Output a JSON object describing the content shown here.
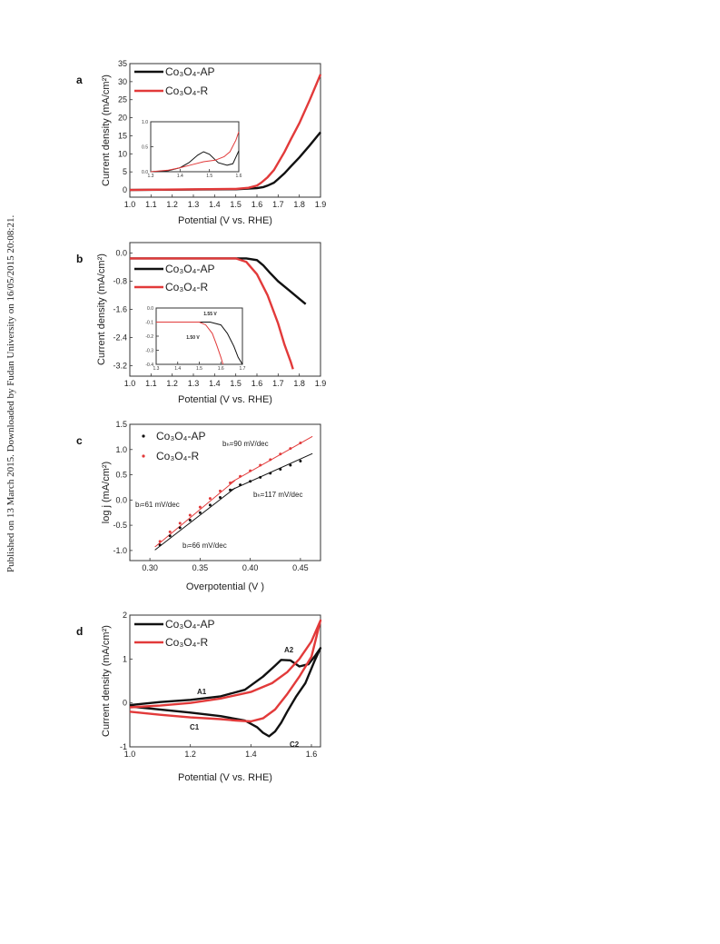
{
  "side_note": "Published on 13 March 2015. Downloaded by Fudan University on 16/05/2015 20:08:21.",
  "colors": {
    "ap": "#111111",
    "r": "#e23a3a"
  },
  "chart_data": [
    {
      "panel": "a",
      "type": "line",
      "xlabel": "Potential (V vs. RHE)",
      "ylabel": "Current density (mA/cm²)",
      "xlim": [
        1.0,
        1.9
      ],
      "ylim": [
        -2,
        35
      ],
      "xticks": [
        "1.0",
        "1.1",
        "1.2",
        "1.3",
        "1.4",
        "1.5",
        "1.6",
        "1.7",
        "1.8",
        "1.9"
      ],
      "yticks": [
        "0",
        "5",
        "10",
        "15",
        "20",
        "25",
        "30",
        "35"
      ],
      "legend": [
        "Co₃O₄-AP",
        "Co₃O₄-R"
      ],
      "series": [
        {
          "name": "Co₃O₄-AP",
          "x": [
            1.0,
            1.5,
            1.6,
            1.63,
            1.65,
            1.68,
            1.7,
            1.73,
            1.76,
            1.8,
            1.85,
            1.9
          ],
          "y": [
            0,
            0.2,
            0.5,
            0.8,
            1.2,
            2,
            3,
            4.6,
            6.5,
            9,
            12.4,
            16
          ]
        },
        {
          "name": "Co₃O₄-R",
          "x": [
            1.0,
            1.5,
            1.56,
            1.6,
            1.62,
            1.65,
            1.68,
            1.7,
            1.73,
            1.76,
            1.8,
            1.85,
            1.9
          ],
          "y": [
            0,
            0.3,
            0.6,
            1.2,
            2,
            3.5,
            5.5,
            7.5,
            10.5,
            14,
            18.5,
            25,
            32
          ]
        }
      ],
      "inset": {
        "xlim": [
          1.3,
          1.6
        ],
        "ylim": [
          0,
          1.0
        ],
        "xticks": [
          "1.3",
          "1.4",
          "1.5",
          "1.6"
        ],
        "yticks": [
          "0.0",
          "0.5",
          "1.0"
        ],
        "series": [
          {
            "name": "Co₃O₄-AP",
            "x": [
              1.3,
              1.36,
              1.4,
              1.43,
              1.46,
              1.48,
              1.5,
              1.53,
              1.56,
              1.58,
              1.6
            ],
            "y": [
              0.0,
              0.02,
              0.08,
              0.18,
              0.33,
              0.4,
              0.35,
              0.18,
              0.13,
              0.16,
              0.42
            ]
          },
          {
            "name": "Co₃O₄-R",
            "x": [
              1.3,
              1.36,
              1.4,
              1.44,
              1.48,
              1.52,
              1.55,
              1.57,
              1.59,
              1.6
            ],
            "y": [
              0.0,
              0.03,
              0.08,
              0.14,
              0.2,
              0.23,
              0.3,
              0.4,
              0.63,
              0.8
            ]
          }
        ]
      }
    },
    {
      "panel": "b",
      "type": "line",
      "xlabel": "Potential (V vs. RHE)",
      "ylabel": "Current density (mA/cm²)",
      "xlim": [
        1.0,
        1.9
      ],
      "ylim": [
        -3.5,
        0.3
      ],
      "xticks": [
        "1.0",
        "1.1",
        "1.2",
        "1.3",
        "1.4",
        "1.5",
        "1.6",
        "1.7",
        "1.8",
        "1.9"
      ],
      "yticks": [
        "0.0",
        "-0.8",
        "-1.6",
        "-2.4",
        "-3.2"
      ],
      "legend": [
        "Co₃O₄-AP",
        "Co₃O₄-R"
      ],
      "series": [
        {
          "name": "Co₃O₄-AP",
          "x": [
            1.0,
            1.5,
            1.55,
            1.6,
            1.63,
            1.66,
            1.7,
            1.75,
            1.8,
            1.83
          ],
          "y": [
            -0.15,
            -0.15,
            -0.15,
            -0.2,
            -0.35,
            -0.55,
            -0.8,
            -1.05,
            -1.3,
            -1.45
          ]
        },
        {
          "name": "Co₃O₄-R",
          "x": [
            1.0,
            1.45,
            1.5,
            1.55,
            1.6,
            1.65,
            1.7,
            1.73,
            1.76,
            1.77
          ],
          "y": [
            -0.15,
            -0.15,
            -0.15,
            -0.25,
            -0.6,
            -1.2,
            -2.0,
            -2.6,
            -3.1,
            -3.3
          ]
        }
      ],
      "inset": {
        "xlim": [
          1.3,
          1.7
        ],
        "ylim": [
          -0.4,
          0.0
        ],
        "xticks": [
          "1.3",
          "1.4",
          "1.5",
          "1.6",
          "1.7"
        ],
        "yticks": [
          "0.0",
          "-0.1",
          "-0.2",
          "-0.3",
          "-0.4"
        ],
        "labels": [
          "1.55 V",
          "1.50 V"
        ],
        "series": [
          {
            "name": "Co₃O₄-AP",
            "x": [
              1.3,
              1.5,
              1.55,
              1.6,
              1.63,
              1.66,
              1.68,
              1.7
            ],
            "y": [
              -0.1,
              -0.1,
              -0.1,
              -0.12,
              -0.18,
              -0.27,
              -0.35,
              -0.4
            ]
          },
          {
            "name": "Co₃O₄-R",
            "x": [
              1.3,
              1.45,
              1.5,
              1.53,
              1.56,
              1.58,
              1.6,
              1.61
            ],
            "y": [
              -0.1,
              -0.1,
              -0.1,
              -0.12,
              -0.18,
              -0.26,
              -0.35,
              -0.4
            ]
          }
        ]
      }
    },
    {
      "panel": "c",
      "type": "scatter",
      "xlabel": "Overpotential (V )",
      "ylabel": "log j (mA/cm²)",
      "xlim": [
        0.28,
        0.47
      ],
      "ylim": [
        -1.2,
        1.5
      ],
      "xticks": [
        "0.30",
        "0.35",
        "0.40",
        "0.45"
      ],
      "yticks": [
        "-1.0",
        "-0.5",
        "0.0",
        "0.5",
        "1.0",
        "1.5"
      ],
      "legend": [
        "Co₃O₄-AP",
        "Co₃O₄-R"
      ],
      "annotations": [
        {
          "text": "bₕ=90 mV/dec",
          "series": "Co₃O₄-R"
        },
        {
          "text": "bₗ=61 mV/dec",
          "series": "Co₃O₄-R"
        },
        {
          "text": "bₕ=117 mV/dec",
          "series": "Co₃O₄-AP"
        },
        {
          "text": "bₗ=66 mV/dec",
          "series": "Co₃O₄-AP"
        }
      ],
      "series": [
        {
          "name": "Co₃O₄-AP",
          "x": [
            0.31,
            0.32,
            0.33,
            0.34,
            0.35,
            0.36,
            0.37,
            0.38,
            0.39,
            0.4,
            0.41,
            0.42,
            0.43,
            0.44,
            0.45
          ],
          "y": [
            -0.89,
            -0.71,
            -0.55,
            -0.4,
            -0.25,
            -0.1,
            0.05,
            0.2,
            0.3,
            0.37,
            0.45,
            0.53,
            0.61,
            0.69,
            0.77
          ]
        },
        {
          "name": "Co₃O₄-R",
          "x": [
            0.31,
            0.32,
            0.33,
            0.34,
            0.35,
            0.36,
            0.37,
            0.38,
            0.39,
            0.4,
            0.41,
            0.42,
            0.43,
            0.44,
            0.45
          ],
          "y": [
            -0.82,
            -0.63,
            -0.46,
            -0.3,
            -0.14,
            0.03,
            0.18,
            0.34,
            0.47,
            0.58,
            0.69,
            0.8,
            0.91,
            1.02,
            1.13
          ]
        }
      ],
      "fits": [
        {
          "series": "Co₃O₄-AP",
          "x": [
            0.305,
            0.385
          ],
          "y": [
            -0.99,
            0.24
          ]
        },
        {
          "series": "Co₃O₄-AP",
          "x": [
            0.38,
            0.462
          ],
          "y": [
            0.19,
            0.92
          ]
        },
        {
          "series": "Co₃O₄-R",
          "x": [
            0.305,
            0.385
          ],
          "y": [
            -0.93,
            0.39
          ]
        },
        {
          "series": "Co₃O₄-R",
          "x": [
            0.38,
            0.462
          ],
          "y": [
            0.34,
            1.26
          ]
        }
      ]
    },
    {
      "panel": "d",
      "type": "line",
      "xlabel": "Potential (V vs. RHE)",
      "ylabel": "Current density (mA/cm²)",
      "xlim": [
        1.0,
        1.63
      ],
      "ylim": [
        -1,
        2
      ],
      "xticks": [
        "1.0",
        "1.2",
        "1.4",
        "1.6"
      ],
      "yticks": [
        "-1",
        "0",
        "1",
        "2"
      ],
      "legend": [
        "Co₃O₄-AP",
        "Co₃O₄-R"
      ],
      "annotations": [
        "A1",
        "A2",
        "C1",
        "C2"
      ],
      "series": [
        {
          "name": "Co₃O₄-AP",
          "x": [
            1.0,
            1.1,
            1.2,
            1.3,
            1.38,
            1.44,
            1.48,
            1.5,
            1.53,
            1.56,
            1.59,
            1.61,
            1.63,
            1.61,
            1.58,
            1.55,
            1.52,
            1.5,
            1.48,
            1.46,
            1.44,
            1.42,
            1.38,
            1.3,
            1.2,
            1.1,
            1.0
          ],
          "y": [
            -0.05,
            0.02,
            0.07,
            0.15,
            0.3,
            0.6,
            0.85,
            0.98,
            0.97,
            0.83,
            0.88,
            1.05,
            1.25,
            0.95,
            0.45,
            0.15,
            -0.2,
            -0.45,
            -0.65,
            -0.76,
            -0.68,
            -0.55,
            -0.4,
            -0.3,
            -0.22,
            -0.15,
            -0.08
          ]
        },
        {
          "name": "Co₃O₄-R",
          "x": [
            1.0,
            1.1,
            1.2,
            1.3,
            1.4,
            1.47,
            1.52,
            1.56,
            1.6,
            1.63,
            1.6,
            1.56,
            1.52,
            1.48,
            1.44,
            1.4,
            1.35,
            1.3,
            1.2,
            1.1,
            1.0
          ],
          "y": [
            -0.1,
            -0.06,
            0.0,
            0.1,
            0.25,
            0.45,
            0.7,
            1.0,
            1.4,
            1.88,
            1.05,
            0.6,
            0.2,
            -0.15,
            -0.35,
            -0.42,
            -0.4,
            -0.37,
            -0.33,
            -0.27,
            -0.2
          ]
        }
      ]
    }
  ]
}
